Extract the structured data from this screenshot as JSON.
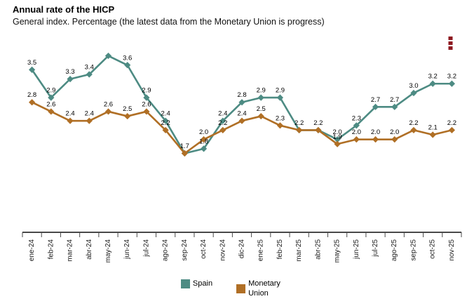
{
  "header": {
    "title": "Annual rate of the HICP",
    "subtitle": "General index. Percentage (the latest data from the Monetary Union is progress)"
  },
  "menu": {
    "icon": "kebab-menu",
    "color": "#8d1a20"
  },
  "chart_data": {
    "type": "line",
    "title": "Annual rate of the HICP",
    "subtitle": "General index. Percentage (the latest data from the Monetary Union is progress)",
    "xlabel": "",
    "ylabel": "",
    "ylim": [
      0,
      4.05
    ],
    "grid": false,
    "legend_position": "bottom",
    "marker": "diamond",
    "axis_color": "#4a4a4a",
    "label_color": "#000000",
    "categories": [
      "ene-24",
      "feb-24",
      "mar-24",
      "abr-24",
      "may-24",
      "jun-24",
      "jul-24",
      "ago-24",
      "sep-24",
      "oct-24",
      "nov-24",
      "dic-24",
      "ene-25",
      "feb-25",
      "mar-25",
      "abr-25",
      "may-25",
      "jun-25",
      "jul-25",
      "ago-25",
      "sep-25",
      "oct-25",
      "nov-25"
    ],
    "series": [
      {
        "name": "Spain",
        "color": "#4d8b83",
        "values": [
          3.5,
          2.9,
          3.3,
          3.4,
          3.8,
          3.6,
          2.9,
          2.4,
          1.7,
          1.8,
          2.4,
          2.8,
          2.9,
          2.9,
          2.2,
          2.2,
          2.0,
          2.3,
          2.7,
          2.7,
          3.0,
          3.2,
          3.2
        ],
        "labels": [
          "3.5",
          "2.9",
          "3.3",
          "3.4",
          null,
          "3.6",
          "2.9",
          "2.4",
          null,
          "1.8",
          "2.4",
          "2.8",
          "2.9",
          "2.9",
          "2.2",
          "2.2",
          "2.0",
          "2.3",
          "2.7",
          "2.7",
          "3.0",
          "3.2",
          "3.2"
        ]
      },
      {
        "name": "Monetary Union",
        "color": "#b06f25",
        "values": [
          2.8,
          2.6,
          2.4,
          2.4,
          2.6,
          2.5,
          2.6,
          2.2,
          1.7,
          2.0,
          2.2,
          2.4,
          2.5,
          2.3,
          2.2,
          2.2,
          1.9,
          2.0,
          2.0,
          2.0,
          2.2,
          2.1,
          2.2
        ],
        "labels": [
          "2.8",
          "2.6",
          "2.4",
          "2.4",
          "2.6",
          "2.5",
          "2.6",
          "2.2",
          "1.7",
          "2.0",
          "2.2",
          "2.4",
          "2.5",
          "2.3",
          null,
          null,
          "1.9",
          "2.0",
          "2.0",
          "2.0",
          "2.2",
          "2.1",
          "2.2"
        ]
      }
    ]
  }
}
